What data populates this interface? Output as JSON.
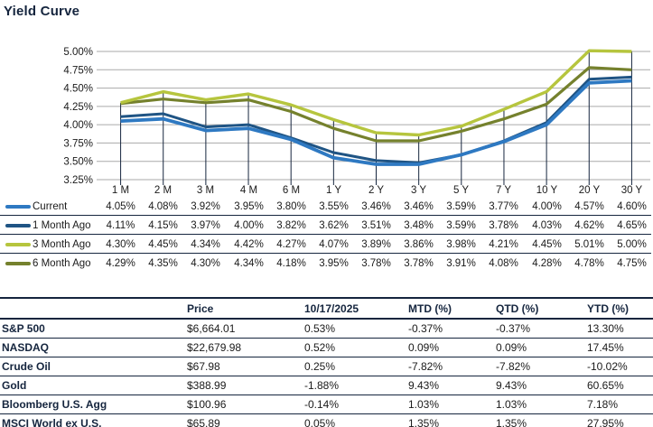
{
  "title": "Yield Curve",
  "colors": {
    "navy": "#15253E",
    "grid": "#AAAAAA",
    "drop_line": "#16263F",
    "text": "#1A1A1A",
    "current": "#2E79C2",
    "month1": "#1F5484",
    "month3": "#B6C53E",
    "month6": "#75812D"
  },
  "chart_data": {
    "type": "line",
    "title": "Yield Curve",
    "categories": [
      "1 M",
      "2 M",
      "3 M",
      "4 M",
      "6 M",
      "1 Y",
      "2 Y",
      "3 Y",
      "5 Y",
      "7 Y",
      "10 Y",
      "20 Y",
      "30 Y"
    ],
    "y_axis": {
      "min": 3.25,
      "max": 5.0,
      "step": 0.25,
      "tick_labels": [
        "3.25%",
        "3.50%",
        "3.75%",
        "4.00%",
        "4.25%",
        "4.50%",
        "4.75%",
        "5.00%"
      ]
    },
    "grid": "horizontal",
    "legend_position": "left-table",
    "series": [
      {
        "name": "Current",
        "color_key": "current",
        "values": [
          4.05,
          4.08,
          3.92,
          3.95,
          3.8,
          3.55,
          3.46,
          3.46,
          3.59,
          3.77,
          4.0,
          4.57,
          4.6
        ]
      },
      {
        "name": "1 Month Ago",
        "color_key": "month1",
        "values": [
          4.11,
          4.15,
          3.97,
          4.0,
          3.82,
          3.62,
          3.51,
          3.48,
          3.59,
          3.78,
          4.03,
          4.62,
          4.65
        ]
      },
      {
        "name": "3 Month Ago",
        "color_key": "month3",
        "values": [
          4.3,
          4.45,
          4.34,
          4.42,
          4.27,
          4.07,
          3.89,
          3.86,
          3.98,
          4.21,
          4.45,
          5.01,
          5.0
        ]
      },
      {
        "name": "6 Month Ago",
        "color_key": "month6",
        "values": [
          4.29,
          4.35,
          4.3,
          4.34,
          4.18,
          3.95,
          3.78,
          3.78,
          3.91,
          4.08,
          4.28,
          4.78,
          4.75
        ]
      }
    ]
  },
  "summary_table": {
    "headers": [
      "",
      "Price",
      "10/17/2025",
      "MTD (%)",
      "QTD (%)",
      "YTD (%)"
    ],
    "rows": [
      [
        "S&P 500",
        "$6,664.01",
        "0.53%",
        "-0.37%",
        "-0.37%",
        "13.30%"
      ],
      [
        "NASDAQ",
        "$22,679.98",
        "0.52%",
        "0.09%",
        "0.09%",
        "17.45%"
      ],
      [
        "Crude Oil",
        "$67.98",
        "0.25%",
        "-7.82%",
        "-7.82%",
        "-10.02%"
      ],
      [
        "Gold",
        "$388.99",
        "-1.88%",
        "9.43%",
        "9.43%",
        "60.65%"
      ],
      [
        "Bloomberg U.S. Agg",
        "$100.96",
        "-0.14%",
        "1.03%",
        "1.03%",
        "7.18%"
      ],
      [
        "MSCI World ex U.S.",
        "$65.89",
        "0.05%",
        "1.35%",
        "1.35%",
        "27.95%"
      ]
    ]
  }
}
